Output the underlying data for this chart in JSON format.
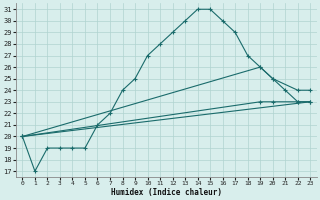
{
  "xlabel": "Humidex (Indice chaleur)",
  "xlim": [
    -0.5,
    23.5
  ],
  "ylim": [
    16.5,
    31.5
  ],
  "yticks": [
    17,
    18,
    19,
    20,
    21,
    22,
    23,
    24,
    25,
    26,
    27,
    28,
    29,
    30,
    31
  ],
  "xticks": [
    0,
    1,
    2,
    3,
    4,
    5,
    6,
    7,
    8,
    9,
    10,
    11,
    12,
    13,
    14,
    15,
    16,
    17,
    18,
    19,
    20,
    21,
    22,
    23
  ],
  "bg_color": "#d8eeec",
  "grid_color": "#b0d4d0",
  "line_color": "#1a6b6b",
  "line1": {
    "x": [
      0,
      1,
      2,
      3,
      4,
      5,
      6,
      7,
      8,
      9,
      10,
      11,
      12,
      13,
      14,
      15,
      16,
      17,
      18,
      19,
      20,
      21,
      22,
      23
    ],
    "y": [
      20,
      17,
      19,
      19,
      19,
      19,
      21,
      22,
      24,
      25,
      27,
      28,
      29,
      30,
      31,
      31,
      30,
      29,
      27,
      26,
      25,
      24,
      23,
      23
    ]
  },
  "line2": {
    "x": [
      0,
      19,
      20,
      22,
      23
    ],
    "y": [
      20,
      26,
      25,
      24,
      24
    ]
  },
  "line3": {
    "x": [
      0,
      19,
      20,
      22,
      23
    ],
    "y": [
      20,
      23,
      23,
      23,
      23
    ]
  },
  "line4": {
    "x": [
      0,
      23
    ],
    "y": [
      20,
      23
    ]
  }
}
